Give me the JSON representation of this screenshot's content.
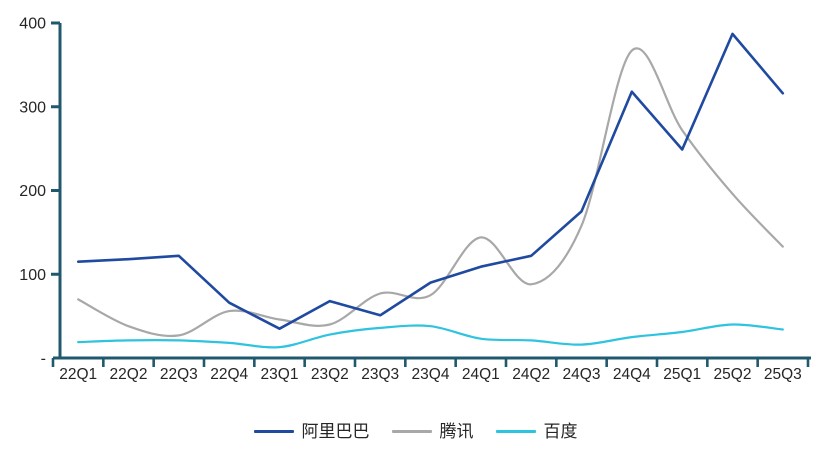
{
  "chart_data": {
    "type": "line",
    "title": "",
    "categories": [
      "22Q1",
      "22Q2",
      "22Q3",
      "22Q4",
      "23Q1",
      "23Q2",
      "23Q3",
      "23Q4",
      "24Q1",
      "24Q2",
      "24Q3",
      "24Q4",
      "25Q1",
      "25Q2",
      "25Q3"
    ],
    "series": [
      {
        "name": "阿里巴巴",
        "color": "#1F4AA0",
        "smooth": false,
        "stroke_width": 2.6,
        "values": [
          115,
          118,
          122,
          66,
          35,
          68,
          51,
          90,
          109,
          122,
          175,
          318,
          249,
          387,
          316
        ]
      },
      {
        "name": "腾讯",
        "color": "#A8A8A8",
        "smooth": true,
        "stroke_width": 2.2,
        "values": [
          70,
          38,
          27,
          56,
          46,
          40,
          77,
          75,
          144,
          88,
          158,
          367,
          272,
          196,
          133
        ]
      },
      {
        "name": "百度",
        "color": "#2EC3DE",
        "smooth": true,
        "stroke_width": 2.2,
        "values": [
          19,
          21,
          21,
          18,
          13,
          28,
          36,
          38,
          23,
          21,
          16,
          25,
          31,
          40,
          34
        ]
      }
    ],
    "y_axis": {
      "min": 0,
      "max": 400,
      "ticks": [
        400,
        300,
        200,
        100
      ],
      "zero_label": "-"
    },
    "x_axis": {
      "label_color": "#262626"
    },
    "grid": false,
    "legend_position": "bottom",
    "axis_color": "#20596E",
    "text_color": "#262626",
    "draw_order": [
      1,
      2,
      0
    ]
  }
}
